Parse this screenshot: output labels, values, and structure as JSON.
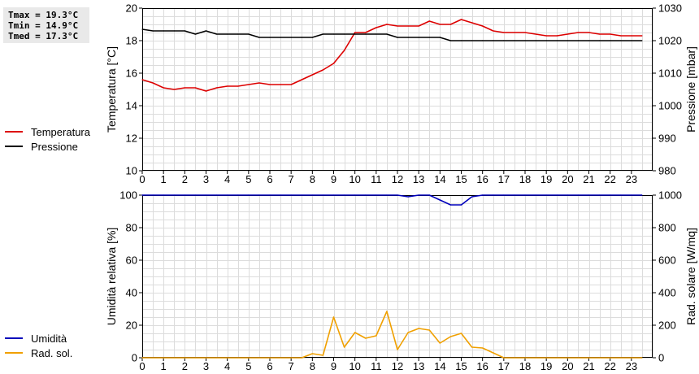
{
  "stats": {
    "tmax": "Tmax = 19.3°C",
    "tmin": "Tmin = 14.9°C",
    "tmed": "Tmed = 17.3°C"
  },
  "legend_top": [
    {
      "label": "Temperatura",
      "color": "#dd0000"
    },
    {
      "label": "Pressione",
      "color": "#000000"
    }
  ],
  "legend_bottom": [
    {
      "label": "Umidità",
      "color": "#0000bb"
    },
    {
      "label": "Rad. sol.",
      "color": "#f0a000"
    }
  ],
  "chart_data": [
    {
      "type": "line",
      "x": [
        0,
        0.5,
        1,
        1.5,
        2,
        2.5,
        3,
        3.5,
        4,
        4.5,
        5,
        5.5,
        6,
        6.5,
        7,
        7.5,
        8,
        8.5,
        9,
        9.5,
        10,
        10.5,
        11,
        11.5,
        12,
        12.5,
        13,
        13.5,
        14,
        14.5,
        15,
        15.5,
        16,
        16.5,
        17,
        17.5,
        18,
        18.5,
        19,
        19.5,
        20,
        20.5,
        21,
        21.5,
        22,
        22.5,
        23,
        23.5
      ],
      "xlim": [
        0,
        24
      ],
      "xticks": [
        "0",
        "1",
        "2",
        "3",
        "4",
        "5",
        "6",
        "7",
        "8",
        "9",
        "10",
        "11",
        "12",
        "13",
        "14",
        "15",
        "16",
        "17",
        "18",
        "19",
        "20",
        "21",
        "22",
        "23"
      ],
      "ylabel_left": "Temperatura [°C]",
      "ylim_left": [
        10,
        20
      ],
      "yticks_left": [
        "10",
        "12",
        "14",
        "16",
        "18",
        "20"
      ],
      "ylabel_right": "Pressione [mbar]",
      "ylim_right": [
        980,
        1030
      ],
      "yticks_right": [
        "980",
        "990",
        "1000",
        "1010",
        "1020",
        "1030"
      ],
      "grid": true,
      "series": [
        {
          "name": "Temperatura",
          "axis": "left",
          "color": "#dd0000",
          "values": [
            15.6,
            15.4,
            15.1,
            15.0,
            15.1,
            15.1,
            14.9,
            15.1,
            15.2,
            15.2,
            15.3,
            15.4,
            15.3,
            15.3,
            15.3,
            15.6,
            15.9,
            16.2,
            16.6,
            17.4,
            18.5,
            18.5,
            18.8,
            19.0,
            18.9,
            18.9,
            18.9,
            19.2,
            19.0,
            19.0,
            19.3,
            19.1,
            18.9,
            18.6,
            18.5,
            18.5,
            18.5,
            18.4,
            18.3,
            18.3,
            18.4,
            18.5,
            18.5,
            18.4,
            18.4,
            18.3,
            18.3,
            18.3
          ]
        },
        {
          "name": "Pressione",
          "axis": "right",
          "color": "#000000",
          "values": [
            1023.5,
            1023.0,
            1023.0,
            1023.0,
            1023.0,
            1022.0,
            1023.0,
            1022.0,
            1022.0,
            1022.0,
            1022.0,
            1021.0,
            1021.0,
            1021.0,
            1021.0,
            1021.0,
            1021.0,
            1022.0,
            1022.0,
            1022.0,
            1022.0,
            1022.0,
            1022.0,
            1022.0,
            1021.0,
            1021.0,
            1021.0,
            1021.0,
            1021.0,
            1020.0,
            1020.0,
            1020.0,
            1020.0,
            1020.0,
            1020.0,
            1020.0,
            1020.0,
            1020.0,
            1020.0,
            1020.0,
            1020.0,
            1020.0,
            1020.0,
            1020.0,
            1020.0,
            1020.0,
            1020.0,
            1020.0
          ]
        }
      ]
    },
    {
      "type": "line",
      "x": [
        0,
        0.5,
        1,
        1.5,
        2,
        2.5,
        3,
        3.5,
        4,
        4.5,
        5,
        5.5,
        6,
        6.5,
        7,
        7.5,
        8,
        8.5,
        9,
        9.5,
        10,
        10.5,
        11,
        11.5,
        12,
        12.5,
        13,
        13.5,
        14,
        14.5,
        15,
        15.5,
        16,
        16.5,
        17,
        17.5,
        18,
        18.5,
        19,
        19.5,
        20,
        20.5,
        21,
        21.5,
        22,
        22.5,
        23,
        23.5
      ],
      "xlim": [
        0,
        24
      ],
      "xticks": [
        "0",
        "1",
        "2",
        "3",
        "4",
        "5",
        "6",
        "7",
        "8",
        "9",
        "10",
        "11",
        "12",
        "13",
        "14",
        "15",
        "16",
        "17",
        "18",
        "19",
        "20",
        "21",
        "22",
        "23"
      ],
      "ylabel_left": "Umidità relativa [%]",
      "ylim_left": [
        0,
        100
      ],
      "yticks_left": [
        "0",
        "20",
        "40",
        "60",
        "80",
        "100"
      ],
      "ylabel_right": "Rad. solare [W/mq]",
      "ylim_right": [
        0,
        1000
      ],
      "yticks_right": [
        "0",
        "200",
        "400",
        "600",
        "800",
        "1000"
      ],
      "grid": true,
      "series": [
        {
          "name": "Umidità",
          "axis": "left",
          "color": "#0000bb",
          "values": [
            100,
            100,
            100,
            100,
            100,
            100,
            100,
            100,
            100,
            100,
            100,
            100,
            100,
            100,
            100,
            100,
            100,
            100,
            100,
            100,
            100,
            100,
            100,
            100,
            100,
            99,
            100,
            100,
            97,
            94,
            94,
            99,
            100,
            100,
            100,
            100,
            100,
            100,
            100,
            100,
            100,
            100,
            100,
            100,
            100,
            100,
            100,
            100
          ]
        },
        {
          "name": "Rad. sol.",
          "axis": "right",
          "color": "#f0a000",
          "values": [
            0,
            0,
            0,
            0,
            0,
            0,
            0,
            0,
            0,
            0,
            0,
            0,
            0,
            0,
            0,
            0,
            25,
            15,
            250,
            65,
            155,
            120,
            135,
            285,
            50,
            155,
            180,
            170,
            90,
            130,
            150,
            65,
            60,
            30,
            0,
            0,
            0,
            0,
            0,
            0,
            0,
            0,
            0,
            0,
            0,
            0,
            0,
            0
          ]
        }
      ]
    }
  ]
}
